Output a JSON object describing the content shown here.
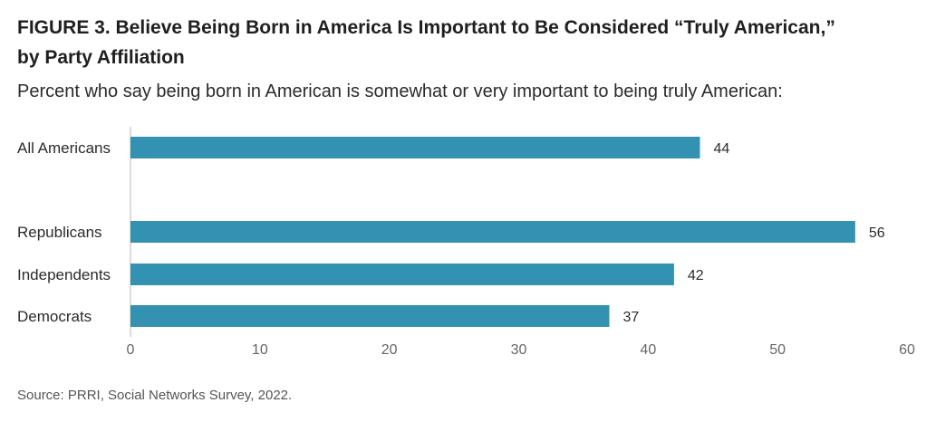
{
  "header": {
    "title_line1": "FIGURE 3.  Believe Being Born in America Is Important to Be Considered “Truly American,”",
    "title_line2": "by Party Affiliation",
    "subtitle": "Percent who say being born in American is somewhat or very important to being truly American:"
  },
  "footer": {
    "source": "Source: PRRI, Social Networks Survey, 2022."
  },
  "chart_data": {
    "type": "bar",
    "orientation": "horizontal",
    "categories": [
      "All Americans",
      "Republicans",
      "Independents",
      "Democrats"
    ],
    "values": [
      44,
      56,
      42,
      37
    ],
    "xlim": [
      0,
      60
    ],
    "xticks": [
      0,
      10,
      20,
      30,
      40,
      50,
      60
    ],
    "bar_color": "#3391b1",
    "data_labels": true,
    "grid": false
  }
}
